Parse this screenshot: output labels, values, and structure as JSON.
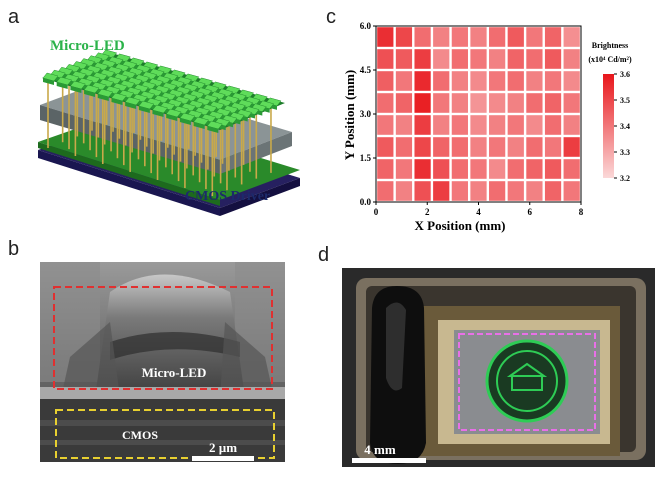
{
  "panels": {
    "a": {
      "letter": "a",
      "top_label": "Micro-LED",
      "bottom_label": "CMOS Driver",
      "colors": {
        "led": "#3fc24a",
        "led_dark": "#1d7d2a",
        "middle": "#7c8486",
        "base": "#2a8a2a",
        "substrate": "#262060",
        "label_blue": "#1c2a6b"
      }
    },
    "b": {
      "letter": "b",
      "microled_label": "Micro-LED",
      "cmos_label": "CMOS",
      "scalebar_label": "2 µm",
      "colors": {
        "red_box": "#e03030",
        "yellow_box": "#e8d030"
      }
    },
    "c": {
      "letter": "c",
      "colorbar": {
        "title_line1": "Brightness",
        "title_line2": "(x10⁴ Cd/m²)",
        "ticks": [
          "3.6",
          "3.5",
          "3.4",
          "3.3",
          "3.2"
        ]
      }
    },
    "d": {
      "letter": "d",
      "scalebar_label": "4 mm",
      "colors": {
        "pink_box": "#e870e8",
        "emblem": "#2ecc55"
      }
    }
  },
  "chart_data": {
    "type": "heatmap",
    "xlabel": "X Position (mm)",
    "ylabel": "Y Position (mm)",
    "xlim": [
      0,
      8
    ],
    "ylim": [
      0,
      6
    ],
    "xticks": [
      "0",
      "2",
      "4",
      "6",
      "8"
    ],
    "yticks": [
      "0.0",
      "1.5",
      "3.0",
      "4.5",
      "6.0"
    ],
    "value_range": [
      3.2,
      3.6
    ],
    "rows": 8,
    "cols": 11,
    "values": [
      [
        3.55,
        3.5,
        3.42,
        3.38,
        3.4,
        3.38,
        3.42,
        3.46,
        3.4,
        3.44,
        3.35
      ],
      [
        3.48,
        3.46,
        3.52,
        3.36,
        3.42,
        3.4,
        3.38,
        3.44,
        3.42,
        3.46,
        3.38
      ],
      [
        3.45,
        3.4,
        3.56,
        3.42,
        3.38,
        3.36,
        3.4,
        3.42,
        3.38,
        3.4,
        3.36
      ],
      [
        3.42,
        3.44,
        3.58,
        3.4,
        3.38,
        3.34,
        3.36,
        3.38,
        3.42,
        3.44,
        3.4
      ],
      [
        3.4,
        3.38,
        3.52,
        3.38,
        3.4,
        3.36,
        3.38,
        3.4,
        3.36,
        3.42,
        3.38
      ],
      [
        3.46,
        3.42,
        3.5,
        3.44,
        3.42,
        3.38,
        3.4,
        3.38,
        3.42,
        3.4,
        3.52
      ],
      [
        3.44,
        3.4,
        3.55,
        3.48,
        3.42,
        3.4,
        3.36,
        3.42,
        3.44,
        3.46,
        3.42
      ],
      [
        3.42,
        3.38,
        3.48,
        3.52,
        3.4,
        3.38,
        3.42,
        3.4,
        3.38,
        3.44,
        3.4
      ]
    ]
  }
}
